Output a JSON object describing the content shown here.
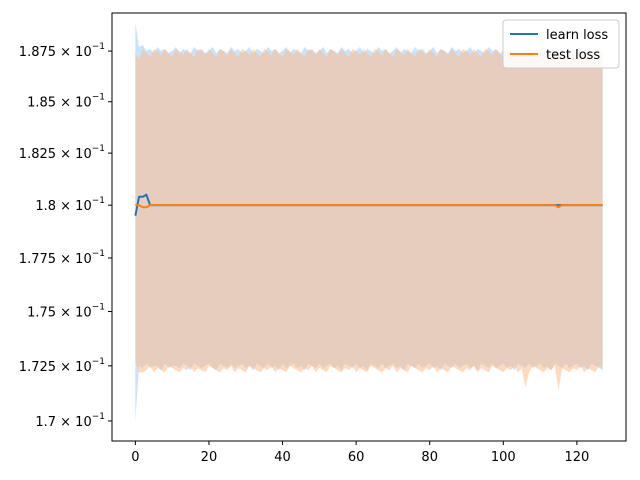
{
  "chart_data": {
    "type": "line",
    "title": "",
    "xlabel": "",
    "ylabel": "",
    "xlim": [
      -6.35,
      133.35
    ],
    "ylim": [
      0.1691,
      0.1894
    ],
    "yscale": "log",
    "grid": false,
    "legend_position": "top-right",
    "x_ticks": [
      0,
      20,
      40,
      60,
      80,
      100,
      120
    ],
    "x_tick_labels": [
      "0",
      "20",
      "40",
      "60",
      "80",
      "100",
      "120"
    ],
    "y_ticks": [
      0.17,
      0.1725,
      0.175,
      0.1775,
      0.18,
      0.1825,
      0.185,
      0.1875
    ],
    "y_tick_mantissas": [
      "1.7",
      "1.725",
      "1.75",
      "1.775",
      "1.8",
      "1.825",
      "1.85",
      "1.875"
    ],
    "y_tick_base": "10",
    "y_tick_exponent": "−1",
    "x": [
      0,
      1,
      2,
      3,
      4,
      5,
      6,
      7,
      8,
      9,
      10,
      11,
      12,
      13,
      14,
      15,
      16,
      17,
      18,
      19,
      20,
      21,
      22,
      23,
      24,
      25,
      26,
      27,
      28,
      29,
      30,
      31,
      32,
      33,
      34,
      35,
      36,
      37,
      38,
      39,
      40,
      41,
      42,
      43,
      44,
      45,
      46,
      47,
      48,
      49,
      50,
      51,
      52,
      53,
      54,
      55,
      56,
      57,
      58,
      59,
      60,
      61,
      62,
      63,
      64,
      65,
      66,
      67,
      68,
      69,
      70,
      71,
      72,
      73,
      74,
      75,
      76,
      77,
      78,
      79,
      80,
      81,
      82,
      83,
      84,
      85,
      86,
      87,
      88,
      89,
      90,
      91,
      92,
      93,
      94,
      95,
      96,
      97,
      98,
      99,
      100,
      101,
      102,
      103,
      104,
      105,
      106,
      107,
      108,
      109,
      110,
      111,
      112,
      113,
      114,
      115,
      116,
      117,
      118,
      119,
      120,
      121,
      122,
      123,
      124,
      125,
      126,
      127
    ],
    "series": [
      {
        "name": "learn loss",
        "color": "#1f77b4",
        "band_color": "#99ccff",
        "values": [
          0.1795,
          0.1804,
          0.1804,
          0.1805,
          0.18,
          0.18,
          0.18,
          0.18,
          0.18,
          0.18,
          0.18,
          0.18,
          0.18,
          0.18,
          0.18,
          0.18,
          0.18,
          0.18,
          0.18,
          0.18,
          0.18,
          0.18,
          0.18,
          0.18,
          0.18,
          0.18,
          0.18,
          0.18,
          0.18,
          0.18,
          0.18,
          0.18,
          0.18,
          0.18,
          0.18,
          0.18,
          0.18,
          0.18,
          0.18,
          0.18,
          0.18,
          0.18,
          0.18,
          0.18,
          0.18,
          0.18,
          0.18,
          0.18,
          0.18,
          0.18,
          0.18,
          0.18,
          0.18,
          0.18,
          0.18,
          0.18,
          0.18,
          0.18,
          0.18,
          0.18,
          0.18,
          0.18,
          0.18,
          0.18,
          0.18,
          0.18,
          0.18,
          0.18,
          0.18,
          0.18,
          0.18,
          0.18,
          0.18,
          0.18,
          0.18,
          0.18,
          0.18,
          0.18,
          0.18,
          0.18,
          0.18,
          0.18,
          0.18,
          0.18,
          0.18,
          0.18,
          0.18,
          0.18,
          0.18,
          0.18,
          0.18,
          0.18,
          0.18,
          0.18,
          0.18,
          0.18,
          0.18,
          0.18,
          0.18,
          0.18,
          0.18,
          0.18,
          0.18,
          0.18,
          0.18,
          0.18,
          0.18,
          0.18,
          0.18,
          0.18,
          0.18,
          0.18,
          0.18,
          0.18,
          0.18,
          0.18,
          0.18,
          0.18,
          0.18,
          0.18,
          0.18,
          0.18,
          0.18,
          0.18,
          0.18,
          0.18,
          0.18,
          0.18
        ],
        "lower": [
          0.17,
          0.1725,
          0.1724,
          0.1726,
          0.1724,
          0.1725,
          0.1725,
          0.1723,
          0.1726,
          0.1724,
          0.1725,
          0.1725,
          0.1724,
          0.1726,
          0.1725,
          0.1723,
          0.1726,
          0.1725,
          0.1724,
          0.1725,
          0.1726,
          0.1724,
          0.1723,
          0.1726,
          0.1725,
          0.1724,
          0.1726,
          0.1724,
          0.1725,
          0.1726,
          0.1724,
          0.1725,
          0.1723,
          0.1726,
          0.1725,
          0.1724,
          0.1726,
          0.1724,
          0.1725,
          0.1723,
          0.1726,
          0.1724,
          0.1725,
          0.1726,
          0.1724,
          0.1725,
          0.1723,
          0.1726,
          0.1725,
          0.1724,
          0.1726,
          0.1724,
          0.1725,
          0.1726,
          0.1724,
          0.1725,
          0.1723,
          0.1726,
          0.1725,
          0.1724,
          0.1726,
          0.1724,
          0.1725,
          0.1723,
          0.1726,
          0.1725,
          0.1724,
          0.1726,
          0.1724,
          0.1725,
          0.1726,
          0.1724,
          0.1725,
          0.1723,
          0.1726,
          0.1725,
          0.1724,
          0.1726,
          0.1724,
          0.1725,
          0.1726,
          0.1724,
          0.1725,
          0.1723,
          0.1726,
          0.1725,
          0.1724,
          0.1726,
          0.1724,
          0.1725,
          0.1726,
          0.1724,
          0.1725,
          0.1723,
          0.1726,
          0.1725,
          0.1724,
          0.1726,
          0.1724,
          0.1725,
          0.1726,
          0.1724,
          0.1725,
          0.1723,
          0.1726,
          0.1725,
          0.1724,
          0.1726,
          0.1724,
          0.1725,
          0.1726,
          0.1724,
          0.1725,
          0.1723,
          0.1726,
          0.1725,
          0.1724,
          0.1726,
          0.1724,
          0.1725,
          0.1726,
          0.1724,
          0.1725,
          0.1723,
          0.1726,
          0.1725,
          0.1724,
          0.1723
        ],
        "upper": [
          0.1889,
          0.1877,
          0.1878,
          0.1875,
          0.1876,
          0.1874,
          0.1877,
          0.1875,
          0.1876,
          0.1874,
          0.1875,
          0.1877,
          0.1874,
          0.1876,
          0.1875,
          0.1874,
          0.1877,
          0.1875,
          0.1876,
          0.1874,
          0.1875,
          0.1877,
          0.1874,
          0.1876,
          0.1875,
          0.1874,
          0.1877,
          0.1875,
          0.1876,
          0.1874,
          0.1875,
          0.1877,
          0.1874,
          0.1876,
          0.1875,
          0.1874,
          0.1877,
          0.1875,
          0.1876,
          0.1874,
          0.1875,
          0.1877,
          0.1874,
          0.1876,
          0.1875,
          0.1874,
          0.1877,
          0.1875,
          0.1876,
          0.1874,
          0.1875,
          0.1877,
          0.1874,
          0.1876,
          0.1875,
          0.1874,
          0.1877,
          0.1875,
          0.1876,
          0.1874,
          0.1875,
          0.1877,
          0.1874,
          0.1876,
          0.1875,
          0.1874,
          0.1877,
          0.1875,
          0.1876,
          0.1874,
          0.1875,
          0.1877,
          0.1874,
          0.1876,
          0.1875,
          0.1874,
          0.1877,
          0.1875,
          0.1876,
          0.1874,
          0.1875,
          0.1877,
          0.1874,
          0.1876,
          0.1875,
          0.1874,
          0.1877,
          0.1875,
          0.1876,
          0.1874,
          0.1875,
          0.1877,
          0.1874,
          0.1876,
          0.1875,
          0.1874,
          0.1877,
          0.1875,
          0.1876,
          0.1874,
          0.1875,
          0.1877,
          0.1874,
          0.1876,
          0.1875,
          0.1874,
          0.1877,
          0.1875,
          0.1876,
          0.1874,
          0.1875,
          0.1877,
          0.1874,
          0.1876,
          0.1875,
          0.1874,
          0.1877,
          0.1875,
          0.1876,
          0.1874,
          0.1875,
          0.1877,
          0.1874,
          0.1876,
          0.1875,
          0.1874,
          0.1877,
          0.1875
        ]
      },
      {
        "name": "test loss",
        "color": "#ff7f0e",
        "band_color": "#ffbb88",
        "values": [
          0.18,
          0.18,
          0.1799,
          0.1799,
          0.18,
          0.18,
          0.18,
          0.18,
          0.18,
          0.18,
          0.18,
          0.18,
          0.18,
          0.18,
          0.18,
          0.18,
          0.18,
          0.18,
          0.18,
          0.18,
          0.18,
          0.18,
          0.18,
          0.18,
          0.18,
          0.18,
          0.18,
          0.18,
          0.18,
          0.18,
          0.18,
          0.18,
          0.18,
          0.18,
          0.18,
          0.18,
          0.18,
          0.18,
          0.18,
          0.18,
          0.18,
          0.18,
          0.18,
          0.18,
          0.18,
          0.18,
          0.18,
          0.18,
          0.18,
          0.18,
          0.18,
          0.18,
          0.18,
          0.18,
          0.18,
          0.18,
          0.18,
          0.18,
          0.18,
          0.18,
          0.18,
          0.18,
          0.18,
          0.18,
          0.18,
          0.18,
          0.18,
          0.18,
          0.18,
          0.18,
          0.18,
          0.18,
          0.18,
          0.18,
          0.18,
          0.18,
          0.18,
          0.18,
          0.18,
          0.18,
          0.18,
          0.18,
          0.18,
          0.18,
          0.18,
          0.18,
          0.18,
          0.18,
          0.18,
          0.18,
          0.18,
          0.18,
          0.18,
          0.18,
          0.18,
          0.18,
          0.18,
          0.18,
          0.18,
          0.18,
          0.18,
          0.18,
          0.18,
          0.18,
          0.18,
          0.18,
          0.18,
          0.18,
          0.18,
          0.18,
          0.18,
          0.18,
          0.18,
          0.18,
          0.18,
          0.1799,
          0.18,
          0.18,
          0.18,
          0.18,
          0.18,
          0.18,
          0.18,
          0.18,
          0.18,
          0.18,
          0.18,
          0.18
        ],
        "lower": [
          0.1727,
          0.1722,
          0.1722,
          0.1723,
          0.1725,
          0.1722,
          0.1724,
          0.1723,
          0.1722,
          0.1725,
          0.1724,
          0.1723,
          0.1722,
          0.1724,
          0.1723,
          0.1725,
          0.1722,
          0.1724,
          0.1723,
          0.1722,
          0.1725,
          0.1724,
          0.1723,
          0.1722,
          0.1724,
          0.1723,
          0.1725,
          0.1722,
          0.1724,
          0.1723,
          0.1722,
          0.1725,
          0.1724,
          0.1723,
          0.1722,
          0.1724,
          0.1723,
          0.1725,
          0.1722,
          0.1724,
          0.1723,
          0.1722,
          0.1725,
          0.1724,
          0.1723,
          0.1722,
          0.1724,
          0.1723,
          0.1725,
          0.1722,
          0.1724,
          0.1723,
          0.1722,
          0.1725,
          0.1724,
          0.1723,
          0.1722,
          0.1724,
          0.1723,
          0.1725,
          0.1722,
          0.1724,
          0.1723,
          0.1722,
          0.1725,
          0.1724,
          0.1723,
          0.1722,
          0.1724,
          0.1723,
          0.1725,
          0.1722,
          0.1724,
          0.1723,
          0.1722,
          0.1725,
          0.1724,
          0.1723,
          0.1722,
          0.1724,
          0.1723,
          0.1725,
          0.1722,
          0.1724,
          0.1723,
          0.1722,
          0.1725,
          0.1724,
          0.1723,
          0.1722,
          0.1724,
          0.1723,
          0.1725,
          0.1722,
          0.1724,
          0.1723,
          0.1722,
          0.1725,
          0.1724,
          0.1723,
          0.1722,
          0.1724,
          0.1723,
          0.1725,
          0.1722,
          0.1724,
          0.1715,
          0.1722,
          0.1725,
          0.1724,
          0.1723,
          0.1722,
          0.1724,
          0.1723,
          0.1725,
          0.1714,
          0.1724,
          0.1723,
          0.1722,
          0.1724,
          0.1723,
          0.1725,
          0.1722,
          0.1724,
          0.1723,
          0.1722,
          0.1725,
          0.1724
        ],
        "upper": [
          0.1874,
          0.1871,
          0.1876,
          0.1874,
          0.1872,
          0.1876,
          0.1875,
          0.1873,
          0.1876,
          0.1874,
          0.1872,
          0.1876,
          0.1875,
          0.1873,
          0.1876,
          0.1874,
          0.1872,
          0.1876,
          0.1875,
          0.1873,
          0.1876,
          0.1874,
          0.1872,
          0.1876,
          0.1875,
          0.1873,
          0.1876,
          0.1874,
          0.1872,
          0.1876,
          0.1875,
          0.1873,
          0.1876,
          0.1874,
          0.1872,
          0.1876,
          0.1875,
          0.1873,
          0.1876,
          0.1874,
          0.1872,
          0.1876,
          0.1875,
          0.1873,
          0.1876,
          0.1874,
          0.1872,
          0.1876,
          0.1875,
          0.1873,
          0.1876,
          0.1874,
          0.1872,
          0.1876,
          0.1875,
          0.1873,
          0.1876,
          0.1874,
          0.1872,
          0.1876,
          0.1875,
          0.1873,
          0.1876,
          0.1874,
          0.1872,
          0.1876,
          0.1875,
          0.1873,
          0.1876,
          0.1874,
          0.1872,
          0.1876,
          0.1875,
          0.1873,
          0.1876,
          0.1874,
          0.1872,
          0.1876,
          0.1875,
          0.1873,
          0.1876,
          0.1874,
          0.1872,
          0.1876,
          0.1875,
          0.1873,
          0.1876,
          0.1874,
          0.1872,
          0.1876,
          0.1875,
          0.1873,
          0.1876,
          0.1874,
          0.1872,
          0.1876,
          0.1875,
          0.1873,
          0.1876,
          0.1874,
          0.1872,
          0.1876,
          0.1875,
          0.1873,
          0.1876,
          0.1874,
          0.1872,
          0.1876,
          0.1875,
          0.1873,
          0.1876,
          0.1874,
          0.1872,
          0.1876,
          0.1875,
          0.1873,
          0.1876,
          0.1874,
          0.1872,
          0.1876,
          0.1875,
          0.1873,
          0.1876,
          0.1874,
          0.1872,
          0.1876,
          0.1875,
          0.1873
        ]
      }
    ]
  }
}
